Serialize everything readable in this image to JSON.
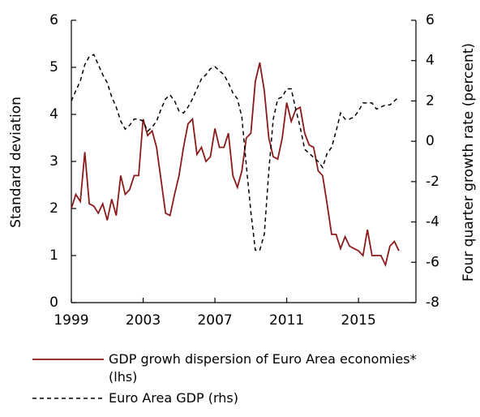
{
  "chart_data": {
    "type": "line",
    "ylabel": "Standard deviation",
    "y2label": "Four quarter growth rate  (percent)",
    "x": [
      1999,
      1999.25,
      1999.5,
      1999.75,
      2000,
      2000.25,
      2000.5,
      2000.75,
      2001,
      2001.25,
      2001.5,
      2001.75,
      2002,
      2002.25,
      2002.5,
      2002.75,
      2003,
      2003.25,
      2003.5,
      2003.75,
      2004,
      2004.25,
      2004.5,
      2004.75,
      2005,
      2005.25,
      2005.5,
      2005.75,
      2006,
      2006.25,
      2006.5,
      2006.75,
      2007,
      2007.25,
      2007.5,
      2007.75,
      2008,
      2008.25,
      2008.5,
      2008.75,
      2009,
      2009.25,
      2009.5,
      2009.75,
      2010,
      2010.25,
      2010.5,
      2010.75,
      2011,
      2011.25,
      2011.5,
      2011.75,
      2012,
      2012.25,
      2012.5,
      2012.75,
      2013,
      2013.25,
      2013.5,
      2013.75,
      2014,
      2014.25,
      2014.5,
      2014.75,
      2015,
      2015.25,
      2015.5,
      2015.75,
      2016,
      2016.25,
      2016.5,
      2016.75,
      2017,
      2017.25
    ],
    "series": [
      {
        "name": "GDP growh dispersion of Euro Area economies* (lhs)",
        "color": "#8b1a1a",
        "dash": false,
        "values": [
          2.0,
          2.3,
          2.15,
          3.2,
          2.1,
          2.05,
          1.9,
          2.1,
          1.75,
          2.2,
          1.85,
          2.7,
          2.3,
          2.4,
          2.7,
          2.7,
          3.9,
          3.55,
          3.65,
          3.3,
          2.6,
          1.9,
          1.85,
          2.3,
          2.7,
          3.3,
          3.8,
          3.9,
          3.15,
          3.3,
          3.0,
          3.1,
          3.7,
          3.3,
          3.3,
          3.6,
          2.7,
          2.45,
          2.8,
          3.5,
          3.6,
          4.7,
          5.1,
          4.5,
          3.5,
          3.1,
          3.05,
          3.5,
          4.25,
          3.85,
          4.1,
          4.15,
          3.6,
          3.35,
          3.3,
          2.8,
          2.7,
          2.1,
          1.45,
          1.45,
          1.15,
          1.4,
          1.2,
          1.15,
          1.1,
          1.0,
          1.55,
          1.0,
          1.0,
          1.0,
          0.8,
          1.2,
          1.3,
          1.1
        ]
      },
      {
        "name": "Euro  Area GDP (rhs)",
        "color": "#000000",
        "dash": true,
        "axis": "y2",
        "values": [
          2.0,
          2.5,
          3.0,
          3.8,
          4.2,
          4.3,
          3.8,
          3.3,
          2.9,
          2.2,
          1.7,
          1.0,
          0.6,
          0.8,
          1.1,
          1.1,
          1.0,
          0.5,
          0.7,
          1.0,
          1.6,
          2.1,
          2.3,
          2.0,
          1.5,
          1.4,
          1.7,
          2.1,
          2.6,
          3.1,
          3.3,
          3.6,
          3.7,
          3.5,
          3.3,
          2.9,
          2.4,
          2.1,
          1.2,
          -1.2,
          -3.5,
          -5.4,
          -5.4,
          -4.6,
          -1.5,
          1.1,
          2.1,
          2.2,
          2.6,
          2.6,
          1.6,
          0.7,
          -0.4,
          -0.6,
          -0.8,
          -1.0,
          -1.3,
          -0.6,
          -0.3,
          0.5,
          1.4,
          1.1,
          1.1,
          1.2,
          1.5,
          1.9,
          1.9,
          1.9,
          1.6,
          1.7,
          1.8,
          1.8,
          2.0,
          2.2
        ]
      }
    ],
    "xlim": [
      1999,
      2018.2
    ],
    "xticks": [
      1999,
      2003,
      2007,
      2011,
      2015
    ],
    "ylim": [
      0,
      6
    ],
    "yticks": [
      0,
      1,
      2,
      3,
      4,
      5,
      6
    ],
    "y2lim": [
      -8,
      6
    ],
    "y2ticks": [
      -8,
      -6,
      -4,
      -2,
      0,
      2,
      4,
      6
    ],
    "grid": false
  }
}
